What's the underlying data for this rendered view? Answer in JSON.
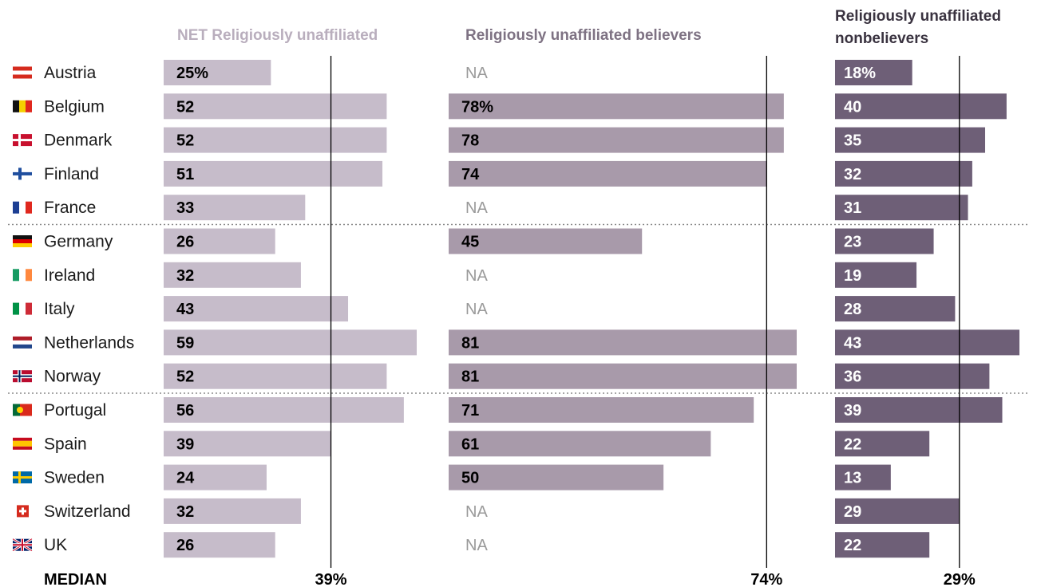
{
  "chart_data": {
    "type": "bar",
    "orientation": "horizontal",
    "categories": [
      "Austria",
      "Belgium",
      "Denmark",
      "Finland",
      "France",
      "Germany",
      "Ireland",
      "Italy",
      "Netherlands",
      "Norway",
      "Portugal",
      "Spain",
      "Sweden",
      "Switzerland",
      "UK"
    ],
    "series": [
      {
        "name": "NET Religiously unaffiliated",
        "values": [
          25,
          52,
          52,
          51,
          33,
          26,
          32,
          43,
          59,
          52,
          56,
          39,
          24,
          32,
          26
        ],
        "median": 39,
        "color": "#c6bcca",
        "header_color": "#b9aebd",
        "label_color": "#000000",
        "xlim": [
          0,
          59
        ]
      },
      {
        "name": "Religiously unaffiliated believers",
        "values": [
          null,
          78,
          78,
          74,
          null,
          45,
          null,
          null,
          81,
          81,
          71,
          61,
          50,
          null,
          null
        ],
        "median": 74,
        "color": "#a89aaa",
        "header_color": "#7e7283",
        "label_color": "#000000",
        "xlim": [
          0,
          81
        ]
      },
      {
        "name": "Religiously unaffiliated nonbelievers",
        "values": [
          18,
          40,
          35,
          32,
          31,
          23,
          19,
          28,
          43,
          36,
          39,
          22,
          13,
          29,
          22
        ],
        "median": 29,
        "color": "#6e5f77",
        "header_color": "#3a3340",
        "label_color": "#ffffff",
        "xlim": [
          0,
          43
        ]
      }
    ],
    "na_label": "NA",
    "median_label": "MEDIAN",
    "percent_rows": [
      0,
      1,
      0
    ],
    "group_separators_after": [
      4,
      9
    ],
    "flags": [
      "austria-flag",
      "belgium-flag",
      "denmark-flag",
      "finland-flag",
      "france-flag",
      "germany-flag",
      "ireland-flag",
      "italy-flag",
      "netherlands-flag",
      "norway-flag",
      "portugal-flag",
      "spain-flag",
      "sweden-flag",
      "switzerland-flag",
      "uk-flag"
    ]
  }
}
